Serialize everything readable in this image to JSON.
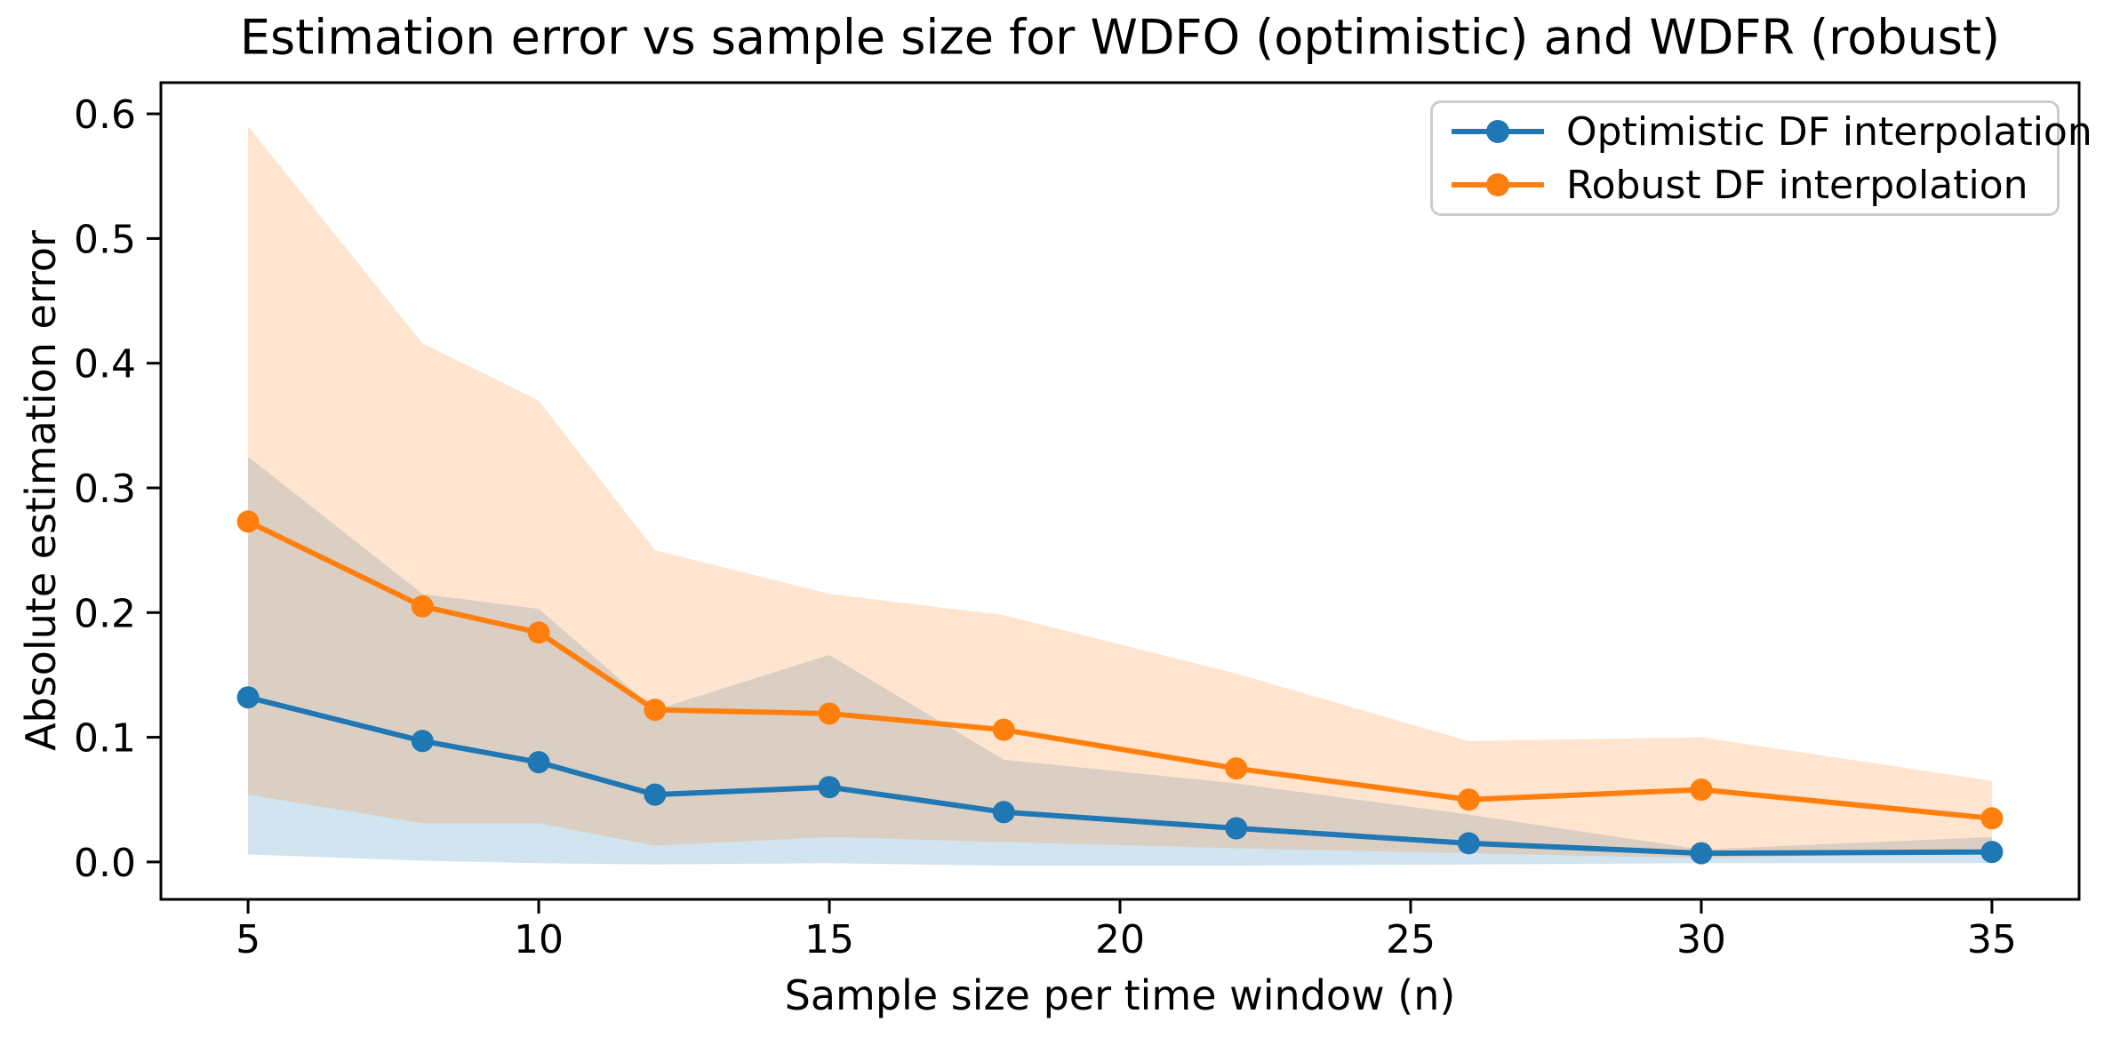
{
  "chart": {
    "title": "Estimation error vs sample size for WDFO (optimistic) and WDFR (robust)",
    "xlabel": "Sample size per time window (n)",
    "ylabel": "Absolute estimation error",
    "legend": {
      "position": "upper right",
      "items": [
        {
          "label": "Optimistic DF interpolation",
          "color": "#1f77b4"
        },
        {
          "label": "Robust DF interpolation",
          "color": "#ff7f0e"
        }
      ]
    }
  },
  "chart_data": {
    "type": "line",
    "title": "Estimation error vs sample size for WDFO (optimistic) and WDFR (robust)",
    "xlabel": "Sample size per time window (n)",
    "ylabel": "Absolute estimation error",
    "x": [
      5,
      8,
      10,
      12,
      15,
      18,
      22,
      26,
      30,
      35
    ],
    "series": [
      {
        "name": "Optimistic DF interpolation",
        "color": "#1f77b4",
        "values": [
          0.132,
          0.097,
          0.08,
          0.054,
          0.06,
          0.04,
          0.027,
          0.015,
          0.007,
          0.008
        ],
        "band_upper": [
          0.325,
          0.215,
          0.203,
          0.122,
          0.166,
          0.082,
          0.063,
          0.038,
          0.01,
          0.02
        ],
        "band_lower": [
          0.006,
          0.001,
          -0.001,
          -0.002,
          -0.001,
          -0.003,
          -0.003,
          -0.002,
          -0.001,
          -0.001
        ]
      },
      {
        "name": "Robust DF interpolation",
        "color": "#ff7f0e",
        "values": [
          0.273,
          0.205,
          0.184,
          0.122,
          0.119,
          0.106,
          0.075,
          0.05,
          0.058,
          0.035
        ],
        "band_upper": [
          0.59,
          0.416,
          0.37,
          0.25,
          0.215,
          0.198,
          0.151,
          0.097,
          0.1,
          0.065
        ],
        "band_lower": [
          0.054,
          0.031,
          0.031,
          0.013,
          0.02,
          0.016,
          0.011,
          0.007,
          0.003,
          0.008
        ]
      }
    ],
    "band_alpha": 0.2,
    "xticks": [
      "5",
      "10",
      "15",
      "20",
      "25",
      "30",
      "35"
    ],
    "xtick_values": [
      5,
      10,
      15,
      20,
      25,
      30,
      35
    ],
    "yticks": [
      "0.0",
      "0.1",
      "0.2",
      "0.3",
      "0.4",
      "0.5",
      "0.6"
    ],
    "ytick_values": [
      0.0,
      0.1,
      0.2,
      0.3,
      0.4,
      0.5,
      0.6
    ],
    "xlim": [
      3.5,
      36.5
    ],
    "ylim": [
      -0.03,
      0.625
    ],
    "grid": false,
    "legend_position": "upper right"
  }
}
